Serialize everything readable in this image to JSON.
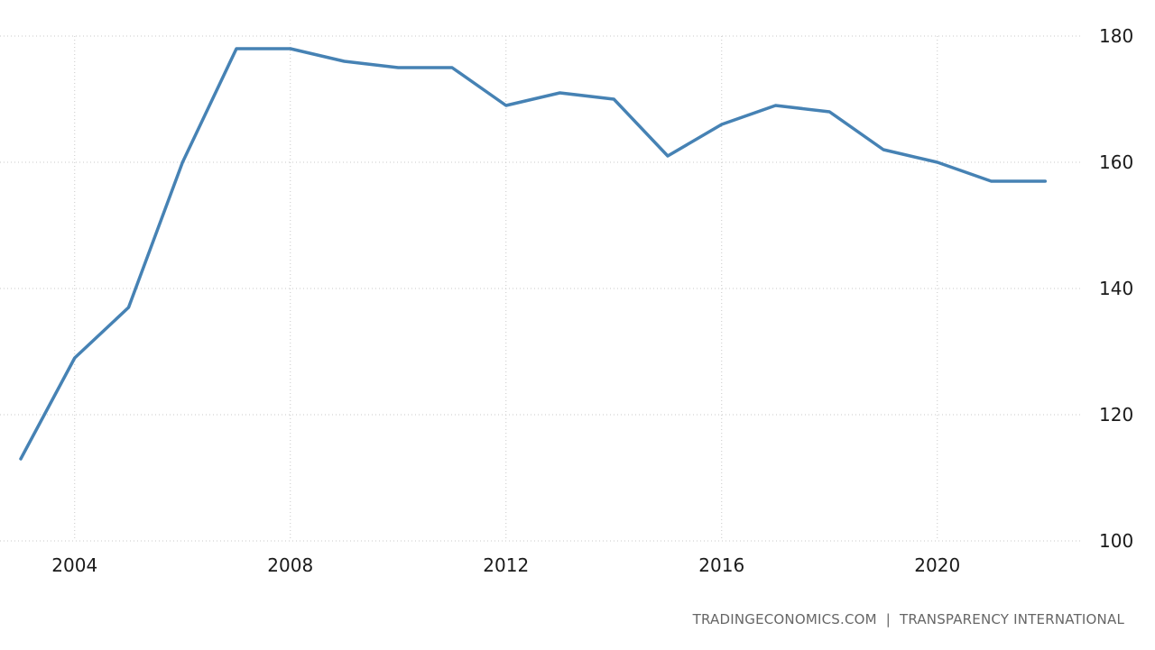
{
  "chart_data": {
    "type": "line",
    "title": "",
    "xlabel": "",
    "ylabel": "",
    "x": [
      2003,
      2004,
      2005,
      2006,
      2007,
      2008,
      2009,
      2010,
      2011,
      2012,
      2013,
      2014,
      2015,
      2016,
      2017,
      2018,
      2019,
      2020,
      2021,
      2022
    ],
    "series": [
      {
        "name": "",
        "values": [
          113,
          129,
          137,
          160,
          178,
          178,
          176,
          175,
          175,
          169,
          171,
          170,
          161,
          166,
          169,
          168,
          162,
          160,
          157,
          157
        ],
        "color": "#4682b4"
      }
    ],
    "xticks": [
      "2004",
      "2008",
      "2012",
      "2016",
      "2020"
    ],
    "yticks": [
      "180",
      "160",
      "140",
      "120",
      "100"
    ],
    "xlim": [
      2003,
      2022
    ],
    "ylim": [
      100,
      180
    ],
    "grid": true,
    "y_axis_side": "right",
    "legend": "none"
  },
  "source": {
    "left": "TRADINGECONOMICS.COM",
    "separator": "|",
    "right": "TRANSPARENCY INTERNATIONAL"
  }
}
